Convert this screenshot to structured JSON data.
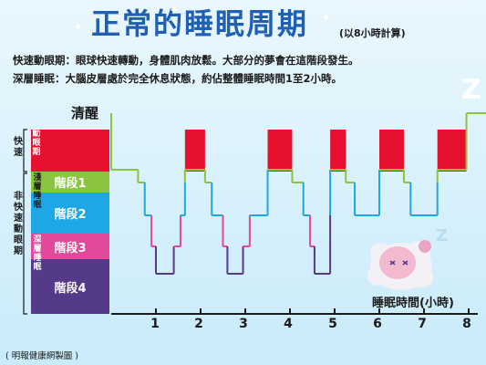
{
  "title": "正常的睡眠周期",
  "subtitle": "(以8小時計算)",
  "descriptions": {
    "rem": "快速動眼期：眼球快速轉動，身體肌肉放鬆。大部分的夢會在這階段發生。",
    "deep": "深層睡眠：大腦皮層處於完全休息狀態，約佔整體睡眠時間1至2小時。"
  },
  "awake_label": "清醒",
  "bands": {
    "rem": {
      "label": "動眼期",
      "color": "#e8102f"
    },
    "stage1": {
      "label": "階段1",
      "color": "#8bc53f"
    },
    "stage2": {
      "label": "階段2",
      "color": "#1ea7e6"
    },
    "stage3": {
      "label": "階段3",
      "color": "#e3489a"
    },
    "stage4": {
      "label": "階段4",
      "color": "#553a8a"
    }
  },
  "stage_groups": {
    "light": "淺層睡眠",
    "deep": "深層睡眠",
    "rem_group": "快速",
    "non_rem_group": "非快速動眼期"
  },
  "x_axis": {
    "label": "睡眠時間(小時)",
    "ticks": [
      "1",
      "2",
      "3",
      "4",
      "5",
      "6",
      "7",
      "8"
    ]
  },
  "credit": "( 明報健康網製圖 )",
  "chart_data": {
    "type": "step-line",
    "x_unit": "hours",
    "levels": [
      "清醒",
      "動眼期",
      "階段1",
      "階段2",
      "階段3",
      "階段4"
    ],
    "hypnogram": [
      {
        "x": 0.0,
        "stage": "清醒"
      },
      {
        "x": 0.0,
        "stage": "動眼期"
      },
      {
        "x": 0.6,
        "stage": "階段1"
      },
      {
        "x": 0.75,
        "stage": "階段2"
      },
      {
        "x": 0.9,
        "stage": "階段3"
      },
      {
        "x": 1.0,
        "stage": "階段4"
      },
      {
        "x": 1.4,
        "stage": "階段3"
      },
      {
        "x": 1.55,
        "stage": "階段2"
      },
      {
        "x": 1.65,
        "stage": "階段1"
      },
      {
        "x": 1.65,
        "stage": "動眼期"
      },
      {
        "x": 2.1,
        "stage": "階段1"
      },
      {
        "x": 2.25,
        "stage": "階段2"
      },
      {
        "x": 2.5,
        "stage": "階段3"
      },
      {
        "x": 2.6,
        "stage": "階段4"
      },
      {
        "x": 2.95,
        "stage": "階段3"
      },
      {
        "x": 3.1,
        "stage": "階段2"
      },
      {
        "x": 3.5,
        "stage": "動眼期"
      },
      {
        "x": 4.05,
        "stage": "階段1"
      },
      {
        "x": 4.3,
        "stage": "階段2"
      },
      {
        "x": 4.45,
        "stage": "階段3"
      },
      {
        "x": 4.55,
        "stage": "階段4"
      },
      {
        "x": 4.9,
        "stage": "階段2"
      },
      {
        "x": 4.9,
        "stage": "動眼期"
      },
      {
        "x": 5.25,
        "stage": "階段1"
      },
      {
        "x": 5.45,
        "stage": "階段2"
      },
      {
        "x": 5.85,
        "stage": "階段2"
      },
      {
        "x": 6.0,
        "stage": "動眼期"
      },
      {
        "x": 6.55,
        "stage": "階段1"
      },
      {
        "x": 6.7,
        "stage": "階段2"
      },
      {
        "x": 7.3,
        "stage": "階段1"
      },
      {
        "x": 7.3,
        "stage": "動眼期"
      },
      {
        "x": 7.95,
        "stage": "清醒"
      },
      {
        "x": 8.4,
        "stage": "清醒"
      }
    ],
    "rem_periods": [
      [
        1.65,
        2.1
      ],
      [
        3.5,
        4.05
      ],
      [
        4.9,
        5.25
      ],
      [
        6.0,
        6.55
      ],
      [
        7.3,
        7.95
      ]
    ]
  }
}
